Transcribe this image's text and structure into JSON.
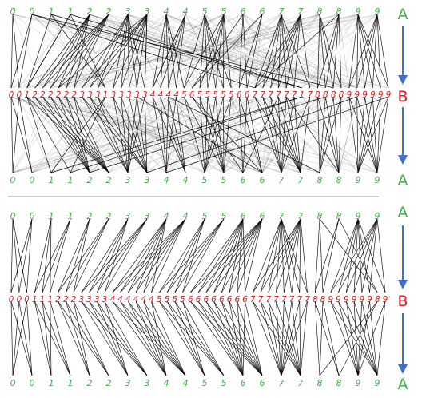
{
  "panels": [
    {
      "id": "top",
      "row_a_top": [
        "0",
        "0",
        "1",
        "1",
        "2",
        "2",
        "3",
        "3",
        "4",
        "4",
        "5",
        "5",
        "6",
        "6",
        "7",
        "7",
        "8",
        "8",
        "9",
        "9"
      ],
      "row_b": [
        "0",
        "0",
        "1",
        "2",
        "2",
        "2",
        "2",
        "2",
        "2",
        "3",
        "3",
        "3",
        "1",
        "3",
        "3",
        "3",
        "3",
        "3",
        "4",
        "4",
        "4",
        "4",
        "5",
        "6",
        "5",
        "5",
        "5",
        "5",
        "5",
        "6",
        "6",
        "7",
        "7",
        "7",
        "7",
        "7",
        "7",
        "1",
        "7",
        "8",
        "8",
        "8",
        "8",
        "9",
        "9",
        "9",
        "9",
        "9",
        "9"
      ],
      "row_a_bottom": [
        "0",
        "0",
        "1",
        "1",
        "2",
        "2",
        "3",
        "3",
        "4",
        "4",
        "5",
        "5",
        "6",
        "6",
        "7",
        "7",
        "8",
        "8",
        "9",
        "9"
      ]
    },
    {
      "id": "bottom",
      "row_a_top": [
        "0",
        "0",
        "1",
        "1",
        "2",
        "2",
        "3",
        "3",
        "4",
        "4",
        "5",
        "5",
        "6",
        "6",
        "7",
        "7",
        "8",
        "8",
        "9",
        "9"
      ],
      "row_b": [
        "0",
        "0",
        "0",
        "1",
        "1",
        "1",
        "2",
        "2",
        "2",
        "3",
        "3",
        "3",
        "3",
        "4",
        "4",
        "4",
        "4",
        "4",
        "4",
        "5",
        "5",
        "5",
        "5",
        "6",
        "6",
        "6",
        "6",
        "6",
        "6",
        "6",
        "6",
        "7",
        "7",
        "7",
        "7",
        "7",
        "7",
        "7",
        "7",
        "8",
        "8",
        "9",
        "9",
        "9",
        "9",
        "9",
        "9",
        "8",
        "9"
      ],
      "row_a_bottom": [
        "0",
        "0",
        "1",
        "1",
        "2",
        "2",
        "3",
        "3",
        "4",
        "4",
        "5",
        "5",
        "6",
        "6",
        "7",
        "7",
        "8",
        "8",
        "9",
        "9"
      ]
    }
  ],
  "labels": {
    "a": "A",
    "b": "B"
  },
  "colors": {
    "a_digits": "#3cb043",
    "b_digits": "#d42020",
    "arrow": "#3f6fc7",
    "lines": "#000000",
    "divider": "#999999"
  }
}
